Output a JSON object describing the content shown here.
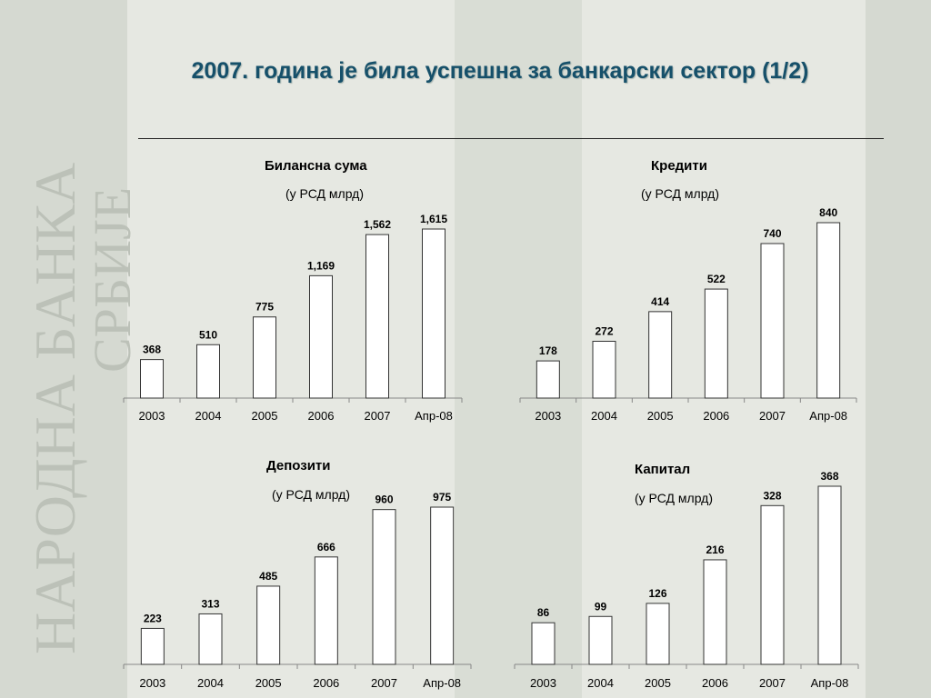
{
  "title": "2007. година је била успешна за банкарски сектор (1/2)",
  "watermark": {
    "line1": "НАРОДНА БАНКА",
    "line2": "СРБИЈЕ"
  },
  "colors": {
    "title": "#16506a",
    "background": "#e6e8e2",
    "bar_fill": "#ffffff",
    "bar_stroke": "#333333"
  },
  "chart_data": [
    {
      "type": "bar",
      "title": "Билансна сума",
      "subtitle": "(у РСД млрд)",
      "categories": [
        "2003",
        "2004",
        "2005",
        "2006",
        "2007",
        "Апр-08"
      ],
      "values": [
        368,
        510,
        775,
        1169,
        1562,
        1615
      ],
      "value_labels": [
        "368",
        "510",
        "775",
        "1,169",
        "1,562",
        "1,615"
      ],
      "ylim": [
        0,
        1615
      ]
    },
    {
      "type": "bar",
      "title": "Кредити",
      "subtitle": "(у РСД млрд)",
      "categories": [
        "2003",
        "2004",
        "2005",
        "2006",
        "2007",
        "Апр-08"
      ],
      "values": [
        178,
        272,
        414,
        522,
        740,
        840
      ],
      "value_labels": [
        "178",
        "272",
        "414",
        "522",
        "740",
        "840"
      ],
      "ylim": [
        0,
        840
      ]
    },
    {
      "type": "bar",
      "title": "Депозити",
      "subtitle": "(у РСД млрд)",
      "categories": [
        "2003",
        "2004",
        "2005",
        "2006",
        "2007",
        "Апр-08"
      ],
      "values": [
        223,
        313,
        485,
        666,
        960,
        975
      ],
      "value_labels": [
        "223",
        "313",
        "485",
        "666",
        "960",
        "975"
      ],
      "ylim": [
        0,
        975
      ]
    },
    {
      "type": "bar",
      "title": "Капитал",
      "subtitle": "(у РСД млрд)",
      "categories": [
        "2003",
        "2004",
        "2005",
        "2006",
        "2007",
        "Апр-08"
      ],
      "values": [
        86,
        99,
        126,
        216,
        328,
        368
      ],
      "value_labels": [
        "86",
        "99",
        "126",
        "216",
        "328",
        "368"
      ],
      "ylim": [
        0,
        368
      ]
    }
  ]
}
